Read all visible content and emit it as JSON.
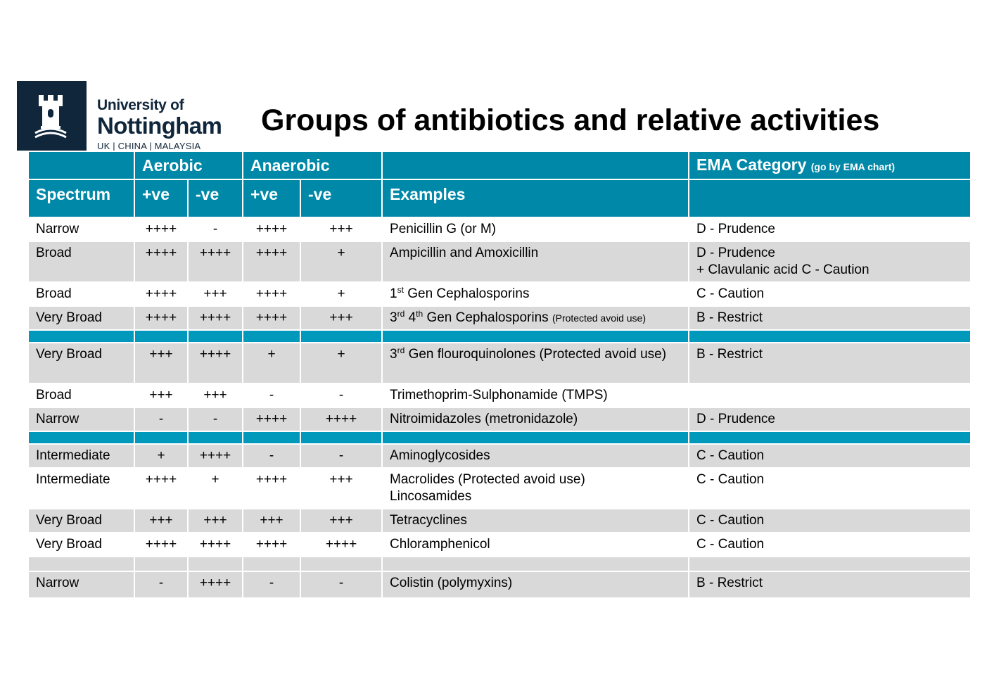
{
  "logo": {
    "line1": "University of",
    "line2": "Nottingham",
    "line3": "UK | CHINA | MALAYSIA"
  },
  "title": "Groups of antibiotics and relative activities",
  "header1": {
    "aerobic": "Aerobic",
    "anaerobic": "Anaerobic",
    "ema": "EMA Category",
    "ema_note": "(go by EMA chart)"
  },
  "header2": {
    "spectrum": "Spectrum",
    "aer_pos": "+ve",
    "aer_neg": "-ve",
    "ana_pos": "+ve",
    "ana_neg": "-ve",
    "examples": "Examples"
  },
  "rows": [
    {
      "spectrum": "Narrow",
      "aer_pos": "++++",
      "aer_neg": "-",
      "ana_pos": "++++",
      "ana_neg": "+++",
      "example": "Penicillin G (or M)",
      "ema": "D - Prudence"
    },
    {
      "spectrum": "Broad",
      "aer_pos": "++++",
      "aer_neg": "++++",
      "ana_pos": "++++",
      "ana_neg": "+",
      "example": "Ampicillin and Amoxicillin",
      "ema": "D - Prudence",
      "ema2": "+ Clavulanic acid C - Caution"
    },
    {
      "spectrum": "Broad",
      "aer_pos": "++++",
      "aer_neg": "+++",
      "ana_pos": "++++",
      "ana_neg": "+",
      "example_num": "1",
      "example_sup": "st",
      "example": "Gen Cephalosporins",
      "ema": "C - Caution"
    },
    {
      "spectrum": "Very Broad",
      "aer_pos": "++++",
      "aer_neg": "++++",
      "ana_pos": "++++",
      "ana_neg": "+++",
      "example_num": "3",
      "example_sup": "rd",
      "example_num2": "4",
      "example_sup2": "th",
      "example": "Gen Cephalosporins",
      "example_note": "(Protected avoid use)",
      "ema": "B - Restrict"
    },
    {
      "spectrum": "Very Broad",
      "aer_pos": "+++",
      "aer_neg": "++++",
      "ana_pos": "+",
      "ana_neg": "+",
      "example_num": "3",
      "example_sup": "rd",
      "example": "Gen flouroquinolones (Protected avoid use)",
      "ema": "B - Restrict"
    },
    {
      "spectrum": "Broad",
      "aer_pos": "+++",
      "aer_neg": "+++",
      "ana_pos": "-",
      "ana_neg": "-",
      "example": "Trimethoprim-Sulphonamide (TMPS)",
      "ema": ""
    },
    {
      "spectrum": "Narrow",
      "aer_pos": "-",
      "aer_neg": "-",
      "ana_pos": "++++",
      "ana_neg": "++++",
      "example": "Nitroimidazoles (metronidazole)",
      "ema": "D - Prudence"
    },
    {
      "spectrum": "Intermediate",
      "aer_pos": "+",
      "aer_neg": "++++",
      "ana_pos": "-",
      "ana_neg": "-",
      "example": "Aminoglycosides",
      "ema": "C - Caution"
    },
    {
      "spectrum": "Intermediate",
      "aer_pos": "++++",
      "aer_neg": "+",
      "ana_pos": "++++",
      "ana_neg": "+++",
      "example": "Macrolides (Protected avoid use)",
      "example2": "Lincosamides",
      "ema": "C - Caution"
    },
    {
      "spectrum": "Very Broad",
      "aer_pos": "+++",
      "aer_neg": "+++",
      "ana_pos": "+++",
      "ana_neg": "+++",
      "example": "Tetracyclines",
      "ema": "C - Caution"
    },
    {
      "spectrum": "Very Broad",
      "aer_pos": "++++",
      "aer_neg": "++++",
      "ana_pos": "++++",
      "ana_neg": "++++",
      "example": "Chloramphenicol",
      "ema": "C - Caution"
    },
    {
      "spectrum": "Narrow",
      "aer_pos": "-",
      "aer_neg": "++++",
      "ana_pos": "-",
      "ana_neg": "-",
      "example": "Colistin (polymyxins)",
      "ema": "B - Restrict"
    }
  ],
  "colors": {
    "header_teal": "#0088a8",
    "separator_teal": "#0099bb",
    "row_grey": "#d9d9d9",
    "logo_navy": "#10263b"
  }
}
